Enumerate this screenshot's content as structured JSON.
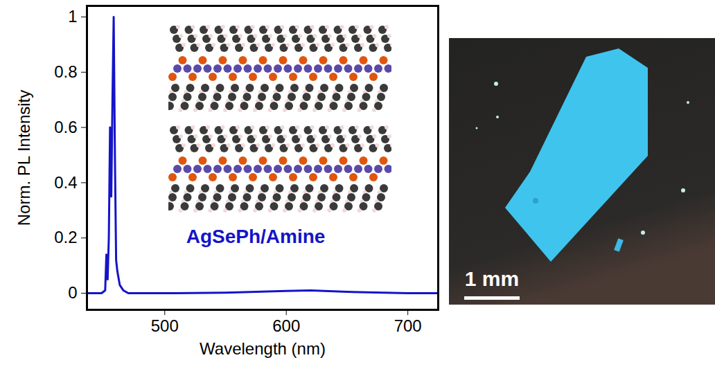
{
  "chart_data": {
    "type": "line",
    "x_label": "Wavelength (nm)",
    "y_label": "Norm. PL Intensity",
    "x": [
      436,
      448,
      451,
      452,
      453,
      454,
      455,
      456,
      457,
      458,
      459,
      460,
      461,
      463,
      466,
      470,
      500,
      550,
      600,
      620,
      650,
      700,
      725
    ],
    "values": [
      0,
      0,
      0.01,
      0.14,
      0.05,
      0.2,
      0.6,
      0.35,
      0.7,
      1.0,
      0.5,
      0.12,
      0.08,
      0.03,
      0.01,
      0,
      0,
      0.002,
      0.008,
      0.01,
      0.005,
      0,
      0
    ],
    "color": "#1414c8",
    "xlim": [
      436,
      725
    ],
    "xticks": [
      500,
      600,
      700
    ],
    "ylim": [
      -0.06,
      1.04
    ],
    "yticks": [
      0,
      0.2,
      0.4,
      0.6,
      0.8,
      1
    ],
    "annotations": [
      {
        "text": "AgSePh/Amine"
      }
    ]
  },
  "photo": {
    "scale_bar": "1 mm"
  }
}
